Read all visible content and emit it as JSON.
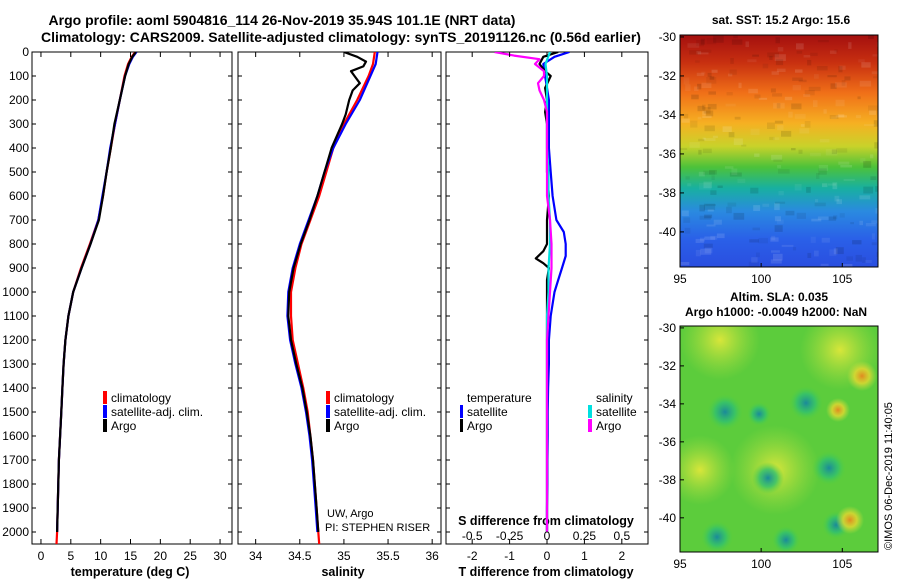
{
  "header": {
    "line1": "Argo profile: aoml 5904816_114 26-Nov-2019 35.94S 101.1E (NRT data)",
    "line2": "Climatology: CARS2009. Satellite-adjusted climatology: synTS_20191126.nc (0.56d earlier)"
  },
  "colors": {
    "climatology": "#ff0000",
    "satellite": "#0000ff",
    "argo": "#000000",
    "sal_satellite": "#00e0e0",
    "sal_argo": "#ff00ff"
  },
  "depth_axis": {
    "range": [
      0,
      2050
    ],
    "ticks": [
      "0",
      "100",
      "200",
      "300",
      "400",
      "500",
      "600",
      "700",
      "800",
      "900",
      "1000",
      "1100",
      "1200",
      "1300",
      "1400",
      "1500",
      "1600",
      "1700",
      "1800",
      "1900",
      "2000"
    ]
  },
  "chart_data": [
    {
      "id": "temperature",
      "type": "line",
      "xlabel": "temperature (deg C)",
      "xlim": [
        -1.5,
        32
      ],
      "xticks": [
        "0",
        "5",
        "10",
        "15",
        "20",
        "25",
        "30"
      ],
      "xtick_values": [
        0,
        5,
        10,
        15,
        20,
        25,
        30
      ],
      "ylabel": "depth",
      "legend": [
        "climatology",
        "satellite-adj. clim.",
        "Argo"
      ],
      "series": [
        {
          "name": "climatology",
          "color": "#ff0000",
          "depth": [
            0,
            20,
            50,
            100,
            200,
            300,
            400,
            500,
            600,
            700,
            800,
            900,
            1000,
            1100,
            1200,
            1300,
            1400,
            1500,
            1600,
            1700,
            1800,
            1900,
            2000,
            2050
          ],
          "values": [
            15.8,
            15.2,
            14.6,
            14.0,
            13.2,
            12.4,
            11.7,
            11.0,
            10.4,
            9.6,
            8.2,
            6.7,
            5.4,
            4.6,
            4.1,
            3.8,
            3.6,
            3.4,
            3.2,
            3.0,
            2.9,
            2.8,
            2.7,
            2.6
          ]
        },
        {
          "name": "satellite-adj. clim.",
          "color": "#0000ff",
          "depth": [
            0,
            20,
            50,
            100,
            200,
            300,
            400,
            500,
            600,
            700,
            800,
            900,
            1000,
            1100,
            1200,
            1300,
            1400,
            1500,
            1600,
            1700,
            1800,
            1900,
            2000
          ],
          "values": [
            16.0,
            15.4,
            14.8,
            14.1,
            13.2,
            12.4,
            11.6,
            11.0,
            10.3,
            9.6,
            8.3,
            6.8,
            5.4,
            4.6,
            4.1,
            3.8,
            3.6,
            3.4,
            3.2,
            3.0,
            2.9,
            2.8,
            2.7
          ]
        },
        {
          "name": "Argo",
          "color": "#000000",
          "depth": [
            0,
            20,
            50,
            100,
            200,
            300,
            400,
            500,
            600,
            700,
            800,
            900,
            1000,
            1100,
            1200,
            1300,
            1400,
            1500,
            1600,
            1700,
            1800,
            1900,
            2000
          ],
          "values": [
            15.9,
            15.3,
            14.7,
            14.1,
            13.2,
            12.3,
            11.7,
            11.0,
            10.4,
            9.7,
            8.3,
            6.8,
            5.4,
            4.6,
            4.1,
            3.8,
            3.6,
            3.4,
            3.2,
            3.0,
            2.9,
            2.8,
            2.7
          ]
        }
      ]
    },
    {
      "id": "salinity",
      "type": "line",
      "xlabel": "salinity",
      "xlim": [
        33.8,
        36.1
      ],
      "xticks": [
        "34",
        "34.5",
        "35",
        "35.5",
        "36"
      ],
      "xtick_values": [
        34,
        34.5,
        35,
        35.5,
        36
      ],
      "legend": [
        "climatology",
        "satellite-adj. clim.",
        "Argo"
      ],
      "annotations": [
        "UW, Argo",
        "PI: STEPHEN RISER"
      ],
      "series": [
        {
          "name": "climatology",
          "color": "#ff0000",
          "depth": [
            0,
            50,
            100,
            200,
            300,
            400,
            500,
            600,
            700,
            800,
            900,
            1000,
            1100,
            1200,
            1300,
            1400,
            1500,
            1600,
            1700,
            1800,
            1900,
            2000,
            2050
          ],
          "values": [
            35.35,
            35.33,
            35.28,
            35.15,
            35.0,
            34.88,
            34.8,
            34.72,
            34.62,
            34.52,
            34.45,
            34.4,
            34.4,
            34.42,
            34.48,
            34.54,
            34.59,
            34.62,
            34.65,
            34.67,
            34.69,
            34.71,
            34.72
          ]
        },
        {
          "name": "satellite-adj. clim.",
          "color": "#0000ff",
          "depth": [
            0,
            50,
            100,
            200,
            300,
            400,
            500,
            600,
            700,
            800,
            900,
            1000,
            1100,
            1200,
            1300,
            1400,
            1500,
            1600,
            1700,
            1800,
            1900,
            2000
          ],
          "values": [
            35.38,
            35.36,
            35.3,
            35.18,
            35.02,
            34.88,
            34.78,
            34.7,
            34.6,
            34.5,
            34.42,
            34.37,
            34.36,
            34.39,
            34.45,
            34.52,
            34.57,
            34.61,
            34.64,
            34.66,
            34.68,
            34.7
          ]
        },
        {
          "name": "Argo",
          "color": "#000000",
          "depth": [
            0,
            20,
            40,
            60,
            80,
            100,
            130,
            160,
            200,
            260,
            300,
            400,
            500,
            600,
            700,
            800,
            900,
            1000,
            1100,
            1200,
            1300,
            1400,
            1500,
            1600,
            1700,
            1800,
            1900,
            2000
          ],
          "values": [
            35.0,
            35.15,
            35.25,
            35.22,
            35.08,
            35.12,
            35.18,
            35.1,
            35.06,
            35.02,
            34.98,
            34.86,
            34.78,
            34.7,
            34.61,
            34.51,
            34.43,
            34.38,
            34.37,
            34.4,
            34.46,
            34.53,
            34.58,
            34.62,
            34.65,
            34.67,
            34.69,
            34.71
          ]
        }
      ]
    },
    {
      "id": "difference",
      "type": "line",
      "xlabel": "T difference from climatology",
      "xlabel_top": "S difference from climatology",
      "xlim": [
        -2.7,
        2.7
      ],
      "xticks": [
        "-2",
        "-1",
        "0",
        "1",
        "2"
      ],
      "xtick_values": [
        -2,
        -1,
        0,
        1,
        2
      ],
      "s_xticks": [
        "-0.5",
        "-0.25",
        "0",
        "0.25",
        "0.5"
      ],
      "legend_temperature_title": "temperature",
      "legend_salinity_title": "salinity",
      "legend": [
        "satellite",
        "Argo",
        "satellite",
        "Argo"
      ],
      "series": [
        {
          "name": "T satellite",
          "color": "#0000ff",
          "depth": [
            0,
            20,
            50,
            100,
            150,
            200,
            300,
            400,
            500,
            600,
            700,
            750,
            800,
            850,
            900,
            950,
            1000,
            1100,
            1200,
            1300,
            1400,
            1500,
            1600,
            1700,
            1800,
            1900,
            2000
          ],
          "values": [
            0.6,
            0.2,
            -0.1,
            -0.05,
            0.0,
            0.05,
            0.05,
            0.05,
            0.1,
            0.15,
            0.25,
            0.45,
            0.5,
            0.5,
            0.4,
            0.3,
            0.2,
            0.1,
            0.05,
            0.05,
            0.03,
            0.02,
            0.02,
            0.01,
            0.01,
            0.0,
            0.0
          ]
        },
        {
          "name": "T Argo",
          "color": "#000000",
          "depth": [
            0,
            20,
            50,
            80,
            100,
            150,
            200,
            250,
            300,
            400,
            500,
            600,
            700,
            800,
            830,
            860,
            880,
            900,
            950,
            1000,
            1100,
            1200,
            1300,
            1400,
            1500,
            1600,
            1700,
            1800,
            1900,
            2000
          ],
          "values": [
            0.3,
            -0.1,
            -0.2,
            -0.05,
            0.1,
            -0.05,
            0.0,
            -0.05,
            0.0,
            0.0,
            0.0,
            0.05,
            0.0,
            0.0,
            -0.1,
            -0.3,
            -0.1,
            0.05,
            0.0,
            0.0,
            0.0,
            0.0,
            0.0,
            0.0,
            0.0,
            0.0,
            0.0,
            0.0,
            0.0,
            0.0
          ]
        },
        {
          "name": "S satellite",
          "color": "#00e0e0",
          "depth": [
            0,
            50,
            100,
            200,
            300,
            400,
            500,
            600,
            700,
            800,
            900,
            1000,
            1100,
            1200,
            1300,
            1400,
            1500,
            1600,
            1700,
            1800,
            1900,
            2000
          ],
          "values": [
            0.02,
            -0.01,
            0.0,
            0.0,
            0.0,
            0.0,
            0.01,
            0.01,
            0.02,
            0.02,
            0.01,
            0.01,
            0.0,
            0.0,
            0.0,
            0.0,
            0.0,
            0.0,
            0.0,
            0.0,
            0.0,
            0.0
          ]
        },
        {
          "name": "S Argo",
          "color": "#ff00ff",
          "depth": [
            0,
            15,
            30,
            50,
            80,
            100,
            130,
            160,
            200,
            250,
            300,
            400,
            500,
            600,
            700,
            800,
            900,
            1000,
            1100,
            1200,
            1300,
            1400,
            1500,
            1600,
            1700,
            1800,
            1900,
            2000
          ],
          "values": [
            -0.35,
            -0.22,
            -0.05,
            -0.08,
            -0.02,
            -0.02,
            -0.06,
            -0.05,
            -0.02,
            0.0,
            0.0,
            0.0,
            0.0,
            0.0,
            0.02,
            0.03,
            0.03,
            0.02,
            0.01,
            0.0,
            0.0,
            0.0,
            0.0,
            0.0,
            0.0,
            0.0,
            0.0,
            0.0
          ]
        }
      ]
    },
    {
      "id": "sst_map",
      "type": "heatmap",
      "title": "sat. SST: 15.2 Argo: 15.6",
      "xticks": [
        "95",
        "100",
        "105"
      ],
      "xtick_values": [
        95,
        100,
        105
      ],
      "yticks": [
        "-30",
        "-32",
        "-34",
        "-36",
        "-38",
        "-40"
      ],
      "ytick_values": [
        -30,
        -32,
        -34,
        -36,
        -38,
        -40
      ],
      "xlim": [
        95,
        107.2
      ],
      "ylim": [
        -41.8,
        -29.9
      ]
    },
    {
      "id": "sla_map",
      "type": "heatmap",
      "title": "Altim. SLA: 0.035",
      "subtitle": "Argo h1000: -0.0049 h2000: NaN",
      "xticks": [
        "95",
        "100",
        "105"
      ],
      "xtick_values": [
        95,
        100,
        105
      ],
      "yticks": [
        "-30",
        "-32",
        "-34",
        "-36",
        "-38",
        "-40"
      ],
      "ytick_values": [
        -30,
        -32,
        -34,
        -36,
        -38,
        -40
      ],
      "xlim": [
        95,
        107.2
      ],
      "ylim": [
        -41.8,
        -29.9
      ],
      "credit": "©IMOS 06-Dec-2019 11:40:05"
    }
  ]
}
